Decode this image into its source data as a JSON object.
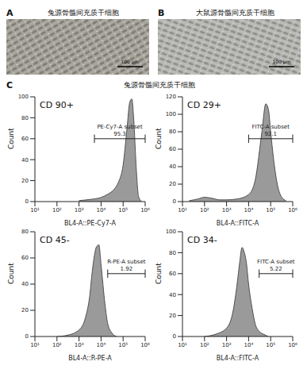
{
  "images": [
    {
      "letter": "A",
      "title": "兔源骨髓间充质干细胞",
      "scale_bar": "100 μm"
    },
    {
      "letter": "B",
      "title": "大鼠源骨髓间充质干细胞",
      "scale_bar": "100 μm"
    }
  ],
  "section": {
    "letter": "C",
    "title": "兔源骨髓间充质干细胞"
  },
  "chart_data": [
    {
      "type": "area",
      "title": "CD 90+",
      "x_label": "BL4-A::PE-Cy7-A",
      "y_label": "Count",
      "log": "x",
      "xlim": [
        10,
        1000000
      ],
      "xticks": [
        {
          "value": 10,
          "label": "10¹"
        },
        {
          "value": 100,
          "label": "10²"
        },
        {
          "value": 1000,
          "label": "10³"
        },
        {
          "value": 10000,
          "label": "10⁴"
        },
        {
          "value": 100000,
          "label": "10⁵"
        },
        {
          "value": 1000000,
          "label": "10⁶"
        }
      ],
      "ylim": [
        0,
        100
      ],
      "yticks": [
        0,
        20,
        40,
        60,
        80,
        100
      ],
      "color": "#9a9a9a",
      "x": [
        1000,
        3000,
        10000,
        20000,
        40000,
        60000,
        100000,
        150000,
        200000,
        250000,
        300000,
        400000,
        500000,
        700000
      ],
      "values": [
        1,
        2,
        4,
        7,
        12,
        18,
        35,
        70,
        95,
        98,
        80,
        30,
        5,
        0
      ],
      "gate": {
        "label": "PE-Cy7-A subset",
        "value": 95.3,
        "range": [
          5000,
          1000000
        ]
      }
    },
    {
      "type": "area",
      "title": "CD 29+",
      "x_label": "BL4-A::FITC-A",
      "y_label": "Count",
      "log": "x",
      "xlim": [
        10,
        1000000
      ],
      "xticks": [
        {
          "value": 10,
          "label": "10¹"
        },
        {
          "value": 100,
          "label": "10²"
        },
        {
          "value": 1000,
          "label": "10³"
        },
        {
          "value": 10000,
          "label": "10⁴"
        },
        {
          "value": 100000,
          "label": "10⁵"
        },
        {
          "value": 1000000,
          "label": "10⁶"
        }
      ],
      "ylim": [
        0,
        120
      ],
      "yticks": [
        0,
        20,
        40,
        60,
        80,
        100,
        120
      ],
      "color": "#9a9a9a",
      "x": [
        20,
        50,
        100,
        200,
        500,
        1000,
        3000,
        10000,
        20000,
        40000,
        60000,
        80000,
        100000,
        150000,
        200000,
        300000,
        500000
      ],
      "values": [
        1,
        3,
        5,
        4,
        2,
        2,
        3,
        8,
        25,
        80,
        112,
        105,
        80,
        40,
        20,
        6,
        1
      ],
      "gate": {
        "label": "FITC-A subset",
        "value": 92.1,
        "range": [
          10000,
          1000000
        ]
      }
    },
    {
      "type": "area",
      "title": "CD 45-",
      "x_label": "BL4-A::R-PE-A",
      "y_label": "Count",
      "log": "x",
      "xlim": [
        10,
        1000000
      ],
      "xticks": [
        {
          "value": 10,
          "label": "10¹"
        },
        {
          "value": 100,
          "label": "10²"
        },
        {
          "value": 1000,
          "label": "10³"
        },
        {
          "value": 10000,
          "label": "10⁴"
        },
        {
          "value": 100000,
          "label": "10⁵"
        },
        {
          "value": 1000000,
          "label": "10⁶"
        }
      ],
      "ylim": [
        0,
        80
      ],
      "yticks": [
        0,
        20,
        40,
        60,
        80
      ],
      "color": "#9a9a9a",
      "x": [
        100,
        300,
        1000,
        2000,
        3000,
        4000,
        5000,
        6000,
        8000,
        10000,
        15000,
        20000,
        30000,
        50000
      ],
      "values": [
        0,
        1,
        5,
        15,
        30,
        50,
        62,
        68,
        70,
        55,
        25,
        10,
        3,
        0
      ],
      "gate": {
        "label": "R-PE-A subset",
        "value": 1.92,
        "range": [
          20000,
          1000000
        ]
      }
    },
    {
      "type": "area",
      "title": "CD 34-",
      "x_label": "BL4-A::FITC-A",
      "y_label": "Count",
      "log": "x",
      "xlim": [
        10,
        1000000
      ],
      "xticks": [
        {
          "value": 10,
          "label": "10¹"
        },
        {
          "value": 100,
          "label": "10²"
        },
        {
          "value": 1000,
          "label": "10³"
        },
        {
          "value": 10000,
          "label": "10⁴"
        },
        {
          "value": 100000,
          "label": "10⁵"
        },
        {
          "value": 1000000,
          "label": "10⁶"
        }
      ],
      "ylim": [
        0,
        100
      ],
      "yticks": [
        0,
        20,
        40,
        60,
        80,
        100
      ],
      "color": "#9a9a9a",
      "x": [
        100,
        300,
        1000,
        2000,
        3000,
        4000,
        5000,
        6000,
        8000,
        10000,
        15000,
        20000,
        30000,
        50000,
        80000
      ],
      "values": [
        0,
        2,
        8,
        25,
        50,
        72,
        85,
        82,
        70,
        50,
        25,
        12,
        5,
        2,
        0
      ],
      "gate": {
        "label": "FITC-A subset",
        "value": 5.22,
        "range": [
          30000,
          1000000
        ]
      }
    }
  ]
}
